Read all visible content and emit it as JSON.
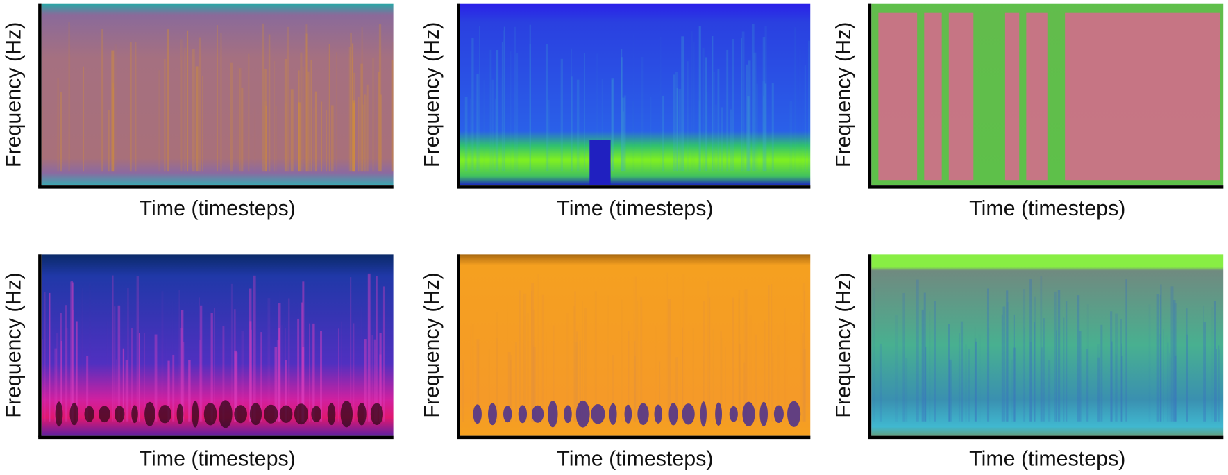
{
  "panels": [
    {
      "y_label": "Frequency (Hz)",
      "x_label": "Time (timesteps)"
    },
    {
      "y_label": "Frequency (Hz)",
      "x_label": "Time (timesteps)"
    },
    {
      "y_label": "Frequency (Hz)",
      "x_label": "Time (timesteps)"
    },
    {
      "y_label": "Frequency (Hz)",
      "x_label": "Time (timesteps)"
    },
    {
      "y_label": "Frequency (Hz)",
      "x_label": "Time (timesteps)"
    },
    {
      "y_label": "Frequency (Hz)",
      "x_label": "Time (timesteps)"
    }
  ]
}
